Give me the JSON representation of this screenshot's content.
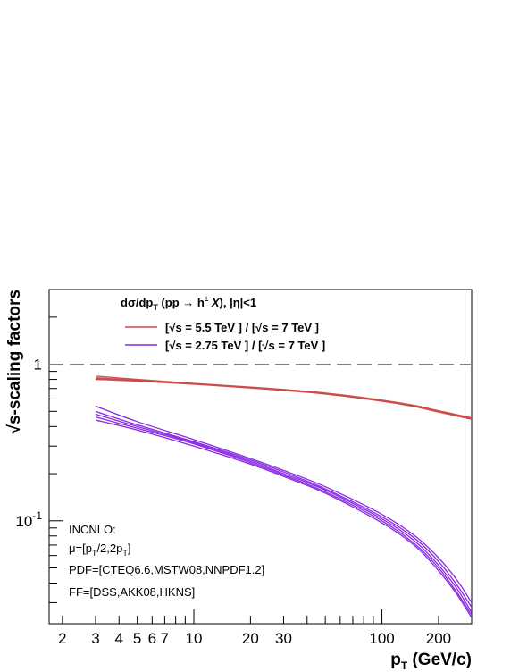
{
  "chart_data": {
    "type": "line",
    "xscale": "log",
    "yscale": "log",
    "xlim": [
      1.7,
      300
    ],
    "ylim": [
      0.022,
      3.0
    ],
    "xlabel": "p_T (GeV/c)",
    "ylabel": "√s-scaling factors",
    "x_tick_labels": [
      {
        "value": 2,
        "label": "2"
      },
      {
        "value": 3,
        "label": "3"
      },
      {
        "value": 4,
        "label": "4"
      },
      {
        "value": 5,
        "label": "5"
      },
      {
        "value": 6,
        "label": "6"
      },
      {
        "value": 7,
        "label": "7"
      },
      {
        "value": 10,
        "label": "10"
      },
      {
        "value": 20,
        "label": "20"
      },
      {
        "value": 30,
        "label": "30"
      },
      {
        "value": 100,
        "label": "100"
      },
      {
        "value": 200,
        "label": "200"
      }
    ],
    "y_tick_labels": [
      {
        "value": 1,
        "label": "1"
      },
      {
        "value": 0.1,
        "label": "10^-1"
      }
    ],
    "reference_line": {
      "y": 1,
      "style": "dashed",
      "color": "#808080"
    },
    "legend": {
      "header": "dσ/dp_T (pp → h± X), |η|<1",
      "placement": "top-center",
      "entries": [
        {
          "label": "[√s = 5.5 TeV ] / [√s = 7 TeV ]",
          "color": "#cc4c4c"
        },
        {
          "label": "[√s = 2.75 TeV ] / [√s = 7 TeV ]",
          "color": "#8a2be2"
        }
      ]
    },
    "series": [
      {
        "group": 0,
        "color": "#cc4c4c",
        "x": [
          3,
          5,
          10,
          20,
          30,
          50,
          100,
          150,
          200,
          300
        ],
        "y": [
          0.84,
          0.8,
          0.755,
          0.715,
          0.69,
          0.655,
          0.59,
          0.545,
          0.505,
          0.455
        ]
      },
      {
        "group": 0,
        "color": "#cc4c4c",
        "x": [
          3,
          5,
          10,
          20,
          30,
          50,
          100,
          150,
          200,
          300
        ],
        "y": [
          0.82,
          0.79,
          0.75,
          0.71,
          0.685,
          0.65,
          0.585,
          0.54,
          0.5,
          0.45
        ]
      },
      {
        "group": 0,
        "color": "#cc4c4c",
        "x": [
          3,
          5,
          10,
          20,
          30,
          50,
          100,
          150,
          200,
          300
        ],
        "y": [
          0.8,
          0.78,
          0.745,
          0.705,
          0.68,
          0.645,
          0.58,
          0.535,
          0.495,
          0.445
        ]
      },
      {
        "group": 0,
        "color": "#cc4c4c",
        "x": [
          3,
          5,
          10,
          20,
          30,
          50,
          100,
          150,
          200,
          300
        ],
        "y": [
          0.81,
          0.785,
          0.748,
          0.708,
          0.683,
          0.648,
          0.583,
          0.538,
          0.498,
          0.448
        ]
      },
      {
        "group": 1,
        "color": "#8a2be2",
        "x": [
          3,
          5,
          10,
          20,
          30,
          50,
          100,
          150,
          200,
          250,
          300
        ],
        "y": [
          0.54,
          0.43,
          0.33,
          0.25,
          0.21,
          0.165,
          0.11,
          0.08,
          0.058,
          0.042,
          0.03
        ]
      },
      {
        "group": 1,
        "color": "#8a2be2",
        "x": [
          3,
          5,
          10,
          20,
          30,
          50,
          100,
          150,
          200,
          250,
          300
        ],
        "y": [
          0.5,
          0.41,
          0.32,
          0.245,
          0.205,
          0.16,
          0.106,
          0.077,
          0.055,
          0.039,
          0.028
        ]
      },
      {
        "group": 1,
        "color": "#8a2be2",
        "x": [
          3,
          5,
          10,
          20,
          30,
          50,
          100,
          150,
          200,
          250,
          300
        ],
        "y": [
          0.48,
          0.4,
          0.315,
          0.24,
          0.2,
          0.157,
          0.103,
          0.074,
          0.052,
          0.037,
          0.026
        ]
      },
      {
        "group": 1,
        "color": "#8a2be2",
        "x": [
          3,
          5,
          10,
          20,
          30,
          50,
          100,
          150,
          200,
          250,
          300
        ],
        "y": [
          0.46,
          0.39,
          0.31,
          0.235,
          0.196,
          0.153,
          0.1,
          0.071,
          0.05,
          0.035,
          0.025
        ]
      },
      {
        "group": 1,
        "color": "#8a2be2",
        "x": [
          3,
          5,
          10,
          20,
          30,
          50,
          100,
          150,
          200,
          250,
          300
        ],
        "y": [
          0.44,
          0.38,
          0.3,
          0.23,
          0.192,
          0.15,
          0.097,
          0.069,
          0.048,
          0.034,
          0.024
        ]
      }
    ],
    "annotations": [
      "INCNLO:",
      "μ=[p_T/2,2p_T]",
      "PDF=[CTEQ6.6,MSTW08,NNPDF1.2]",
      "FF=[DSS,AKK08,HKNS]"
    ]
  }
}
